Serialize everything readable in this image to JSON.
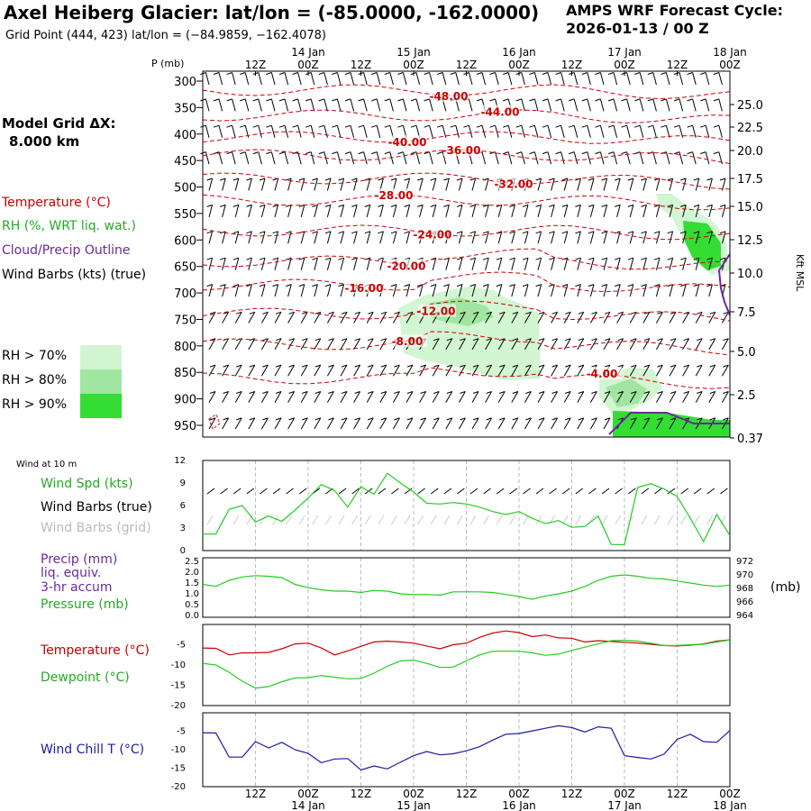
{
  "header": {
    "title": "Axel Heiberg Glacier:  lat/lon = (-85.0000, -162.0000)",
    "subtitle": "Grid Point (444, 423) lat/lon = (−84.9859, −162.4078)",
    "forecast_line1": "AMPS WRF Forecast Cycle:",
    "forecast_line2": "2026-01-13 / 00  Z"
  },
  "left_panel": {
    "grid_label": "Model Grid ΔX:",
    "grid_value": "8.000 km",
    "legend_temperature": "Temperature (°C)",
    "legend_rh": "RH (%, WRT liq. wat.)",
    "legend_cloud": "Cloud/Precip Outline",
    "legend_wind": "Wind Barbs (kts) (true)",
    "rh_thresholds": [
      "RH > 70%",
      "RH > 80%",
      "RH > 90%"
    ]
  },
  "panel_labels": {
    "wind_at_10m": "Wind at 10 m",
    "wind_speed": "Wind Spd (kts)",
    "wind_barbs_true": "Wind Barbs (true)",
    "wind_barbs_grid": "Wind Barbs (grid)",
    "precip1": "Precip (mm)",
    "precip2": "liq. equiv.",
    "precip3": "3-hr accum",
    "pressure": "Pressure (mb)",
    "pressure_units": "(mb)",
    "temperature": "Temperature (°C)",
    "dewpoint": "Dewpoint (°C)",
    "windchill": "Wind Chill T (°C)",
    "p_axis_label": "P (mb)",
    "kft_axis_label": "Kft MSL"
  },
  "colors": {
    "temperature": "#cc0000",
    "rh70": "#d2f5d2",
    "rh80": "#a0e6a0",
    "rh90": "#33dd33",
    "cloud": "#6a2a9a",
    "green_line": "#22cc22",
    "windchill": "#1a1aa8"
  },
  "chart_data": [
    {
      "type": "contour",
      "name": "time-height cross-section",
      "x_tick_labels": [
        "12Z",
        "00Z",
        "12Z",
        "00Z",
        "12Z",
        "00Z",
        "12Z",
        "00Z",
        "12Z",
        "00Z"
      ],
      "x_date_labels": [
        "14 Jan",
        "15 Jan",
        "16 Jan",
        "17 Jan",
        "18 Jan"
      ],
      "pressure_levels": [
        300,
        350,
        400,
        450,
        500,
        550,
        600,
        650,
        700,
        750,
        800,
        850,
        900,
        950
      ],
      "height_labels_kft": [
        "25.0",
        "22.5",
        "20.0",
        "17.5",
        "15.0",
        "12.5",
        "10.0",
        "7.5",
        "5.0",
        "2.5",
        "0.37"
      ],
      "temperature_contour_labels": [
        "-48.00",
        "-44.00",
        "-40.00",
        "-36.00",
        "-32.00",
        "-28.00",
        "-24.00",
        "-20.00",
        "-16.00",
        "-12.00",
        "-8.00",
        "-4.00"
      ]
    },
    {
      "type": "line",
      "name": "wind at 10 m",
      "y_range": [
        0,
        12
      ],
      "y_ticks": [
        "0",
        "3",
        "6",
        "9",
        "12"
      ],
      "x_range_hours": [
        0,
        120
      ],
      "wind_speed_kts": [
        [
          0,
          2.2
        ],
        [
          3,
          2.2
        ],
        [
          6,
          5.5
        ],
        [
          9,
          6
        ],
        [
          12,
          3.8
        ],
        [
          15,
          4.6
        ],
        [
          18,
          3.9
        ],
        [
          21,
          5.4
        ],
        [
          24,
          7
        ],
        [
          27,
          8.8
        ],
        [
          30,
          8
        ],
        [
          33,
          5.8
        ],
        [
          36,
          8.5
        ],
        [
          39,
          7.5
        ],
        [
          42,
          10.3
        ],
        [
          45,
          9
        ],
        [
          48,
          7.8
        ],
        [
          51,
          6.3
        ],
        [
          54,
          6.2
        ],
        [
          57,
          6.4
        ],
        [
          60,
          6.2
        ],
        [
          63,
          5.8
        ],
        [
          66,
          5.2
        ],
        [
          69,
          4.8
        ],
        [
          72,
          5.2
        ],
        [
          75,
          4.3
        ],
        [
          78,
          3.6
        ],
        [
          81,
          4
        ],
        [
          84,
          3.1
        ],
        [
          87,
          3.2
        ],
        [
          90,
          4.6
        ],
        [
          93,
          0.8
        ],
        [
          96,
          0.8
        ],
        [
          99,
          8.4
        ],
        [
          102,
          8.9
        ],
        [
          105,
          8.2
        ],
        [
          108,
          7.2
        ],
        [
          111,
          4.3
        ],
        [
          114,
          1.2
        ],
        [
          117,
          4.8
        ],
        [
          120,
          2
        ]
      ]
    },
    {
      "type": "line",
      "name": "precip and pressure",
      "left_y_ticks": [
        "0.0",
        "0.5",
        "1.0",
        "1.5",
        "2.0",
        "2.5"
      ],
      "right_y_ticks": [
        "964",
        "966",
        "968",
        "970",
        "972"
      ],
      "pressure_mb": [
        [
          0,
          968.6
        ],
        [
          3,
          968.3
        ],
        [
          6,
          969.2
        ],
        [
          9,
          969.7
        ],
        [
          12,
          969.9
        ],
        [
          15,
          969.8
        ],
        [
          18,
          969.6
        ],
        [
          21,
          968.6
        ],
        [
          24,
          968.1
        ],
        [
          27,
          967.8
        ],
        [
          30,
          967.6
        ],
        [
          33,
          967.6
        ],
        [
          36,
          967.4
        ],
        [
          39,
          967.7
        ],
        [
          42,
          967.6
        ],
        [
          45,
          967.2
        ],
        [
          48,
          967.1
        ],
        [
          51,
          967.1
        ],
        [
          54,
          967
        ],
        [
          57,
          967.5
        ],
        [
          60,
          967.5
        ],
        [
          63,
          967.5
        ],
        [
          66,
          967.4
        ],
        [
          69,
          967.1
        ],
        [
          72,
          966.8
        ],
        [
          75,
          966.4
        ],
        [
          78,
          966.9
        ],
        [
          81,
          967.2
        ],
        [
          84,
          967.6
        ],
        [
          87,
          968.3
        ],
        [
          90,
          969.2
        ],
        [
          93,
          969.8
        ],
        [
          96,
          970
        ],
        [
          99,
          969.8
        ],
        [
          102,
          969.5
        ],
        [
          105,
          969.4
        ],
        [
          108,
          969.1
        ],
        [
          111,
          968.8
        ],
        [
          114,
          968.5
        ],
        [
          117,
          968.3
        ],
        [
          120,
          968.5
        ]
      ]
    },
    {
      "type": "line",
      "name": "temperature and dewpoint",
      "y_range": [
        -20,
        0
      ],
      "y_ticks": [
        "-20",
        "-15",
        "-10",
        "-5"
      ],
      "temperature_c": [
        [
          0,
          -5.8
        ],
        [
          3,
          -5.9
        ],
        [
          6,
          -7.5
        ],
        [
          9,
          -7
        ],
        [
          12,
          -7
        ],
        [
          15,
          -6.9
        ],
        [
          18,
          -6
        ],
        [
          21,
          -4.8
        ],
        [
          24,
          -4.6
        ],
        [
          27,
          -5.8
        ],
        [
          30,
          -7.5
        ],
        [
          33,
          -6.5
        ],
        [
          36,
          -5.4
        ],
        [
          39,
          -4.3
        ],
        [
          42,
          -4.1
        ],
        [
          45,
          -4.3
        ],
        [
          48,
          -4.6
        ],
        [
          51,
          -5.3
        ],
        [
          54,
          -6
        ],
        [
          57,
          -5
        ],
        [
          60,
          -4.6
        ],
        [
          63,
          -3.2
        ],
        [
          66,
          -2.1
        ],
        [
          69,
          -1.6
        ],
        [
          72,
          -2
        ],
        [
          75,
          -3
        ],
        [
          78,
          -2.6
        ],
        [
          81,
          -3.3
        ],
        [
          84,
          -3.4
        ],
        [
          87,
          -4.3
        ],
        [
          90,
          -4
        ],
        [
          93,
          -4.2
        ],
        [
          96,
          -4.4
        ],
        [
          99,
          -4.6
        ],
        [
          102,
          -4.9
        ],
        [
          105,
          -5.2
        ],
        [
          108,
          -5.3
        ],
        [
          111,
          -5.1
        ],
        [
          114,
          -4.8
        ],
        [
          117,
          -4.1
        ],
        [
          120,
          -3.8
        ]
      ],
      "dewpoint_c": [
        [
          0,
          -9.6
        ],
        [
          3,
          -10
        ],
        [
          6,
          -11.8
        ],
        [
          9,
          -14
        ],
        [
          12,
          -15.7
        ],
        [
          15,
          -15.3
        ],
        [
          18,
          -14.1
        ],
        [
          21,
          -13.2
        ],
        [
          24,
          -13.1
        ],
        [
          27,
          -12.6
        ],
        [
          30,
          -13
        ],
        [
          33,
          -13.4
        ],
        [
          36,
          -13.3
        ],
        [
          39,
          -12
        ],
        [
          42,
          -10.3
        ],
        [
          45,
          -9
        ],
        [
          48,
          -8.8
        ],
        [
          51,
          -9.6
        ],
        [
          54,
          -10.6
        ],
        [
          57,
          -10.5
        ],
        [
          60,
          -9
        ],
        [
          63,
          -7.5
        ],
        [
          66,
          -6.6
        ],
        [
          69,
          -6.6
        ],
        [
          72,
          -6.6
        ],
        [
          75,
          -7
        ],
        [
          78,
          -7.6
        ],
        [
          81,
          -7.3
        ],
        [
          84,
          -6.4
        ],
        [
          87,
          -5.6
        ],
        [
          90,
          -4.8
        ],
        [
          93,
          -4
        ],
        [
          96,
          -3.9
        ],
        [
          99,
          -4.1
        ],
        [
          102,
          -4.6
        ],
        [
          105,
          -5.2
        ],
        [
          108,
          -5.2
        ],
        [
          111,
          -5
        ],
        [
          114,
          -4.9
        ],
        [
          117,
          -4.3
        ],
        [
          120,
          -3.8
        ]
      ]
    },
    {
      "type": "line",
      "name": "wind chill",
      "y_range": [
        -20,
        0
      ],
      "y_ticks": [
        "-20",
        "-15",
        "-10",
        "-5"
      ],
      "windchill_c": [
        [
          0,
          -5.4
        ],
        [
          3,
          -5.5
        ],
        [
          6,
          -12
        ],
        [
          9,
          -12
        ],
        [
          12,
          -7.8
        ],
        [
          15,
          -9.5
        ],
        [
          18,
          -8
        ],
        [
          21,
          -10
        ],
        [
          24,
          -11
        ],
        [
          27,
          -13.5
        ],
        [
          30,
          -12.5
        ],
        [
          33,
          -12.4
        ],
        [
          36,
          -15.5
        ],
        [
          39,
          -14.4
        ],
        [
          42,
          -15.2
        ],
        [
          45,
          -13.4
        ],
        [
          48,
          -11.6
        ],
        [
          51,
          -10.5
        ],
        [
          54,
          -11.4
        ],
        [
          57,
          -11.1
        ],
        [
          60,
          -10.3
        ],
        [
          63,
          -9.2
        ],
        [
          66,
          -7.4
        ],
        [
          69,
          -5.8
        ],
        [
          72,
          -5.6
        ],
        [
          75,
          -4.9
        ],
        [
          78,
          -4.2
        ],
        [
          81,
          -3.5
        ],
        [
          84,
          -4
        ],
        [
          87,
          -5.2
        ],
        [
          90,
          -3.8
        ],
        [
          93,
          -4.2
        ],
        [
          96,
          -11.6
        ],
        [
          99,
          -12.1
        ],
        [
          102,
          -12.5
        ],
        [
          105,
          -11.2
        ],
        [
          108,
          -7.2
        ],
        [
          111,
          -5.8
        ],
        [
          114,
          -7.8
        ],
        [
          117,
          -8
        ],
        [
          120,
          -4.8
        ]
      ]
    }
  ]
}
